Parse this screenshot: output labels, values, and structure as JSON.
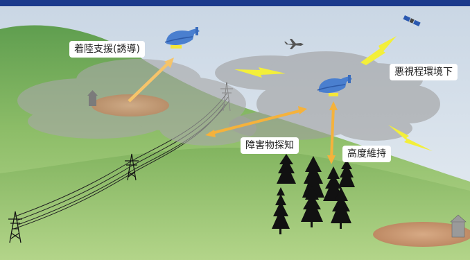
{
  "labels": {
    "landing_support": "着陸支援(誘導)",
    "poor_visibility": "悪視程環境下",
    "obstacle_detection": "障害物探知",
    "altitude_hold": "高度維持"
  },
  "colors": {
    "top_bar": "#1b3a8c",
    "sky": "#d9e3ec",
    "hill": "#93c06c",
    "cloud": "#a3a3a3",
    "arrow_orange": "#f5b23c",
    "lightning": "#f3ef3a",
    "drone_body": "#4a7fcf",
    "gravel": "#c79873",
    "tree": "#111111"
  },
  "icons": {
    "drone": "drone-icon",
    "airplane": "airplane-icon",
    "satellite": "satellite-icon",
    "pylon": "power-pylon-icon",
    "tree": "conifer-tree-icon",
    "house": "house-icon"
  }
}
